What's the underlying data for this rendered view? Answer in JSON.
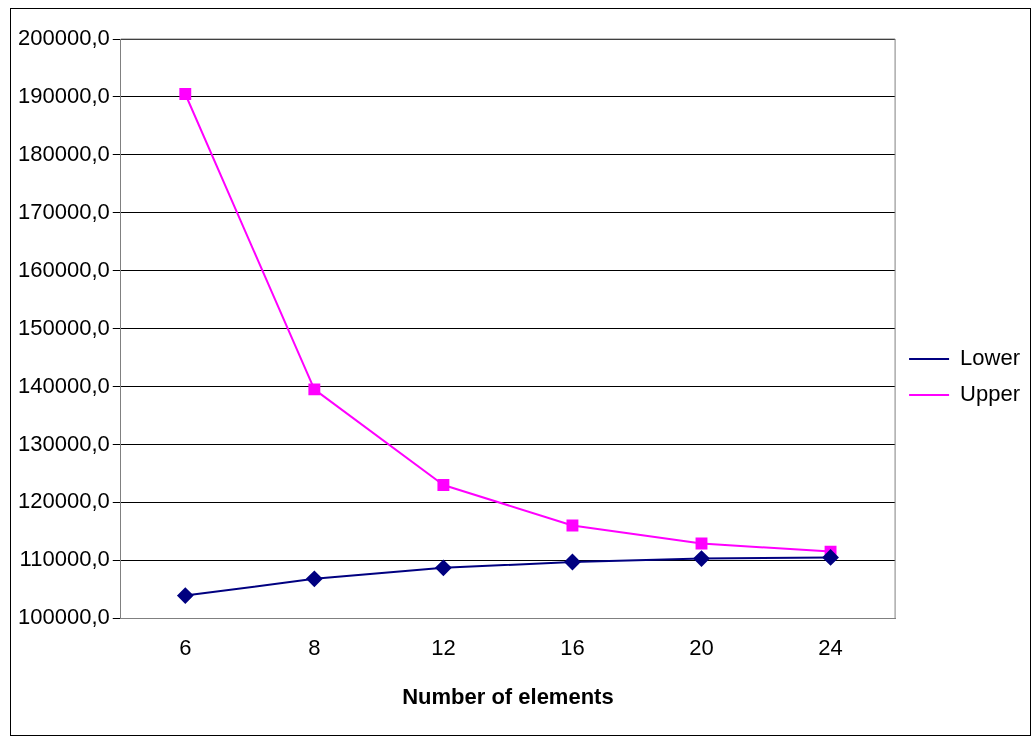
{
  "chart_data": {
    "type": "line",
    "xlabel": "Number of elements",
    "categories": [
      "6",
      "8",
      "12",
      "16",
      "20",
      "24"
    ],
    "series": [
      {
        "name": "Lower",
        "color": "#000080",
        "marker": "diamond",
        "values": [
          103900,
          106800,
          108700,
          109700,
          110300,
          110500
        ]
      },
      {
        "name": "Upper",
        "color": "#ff00ff",
        "marker": "square",
        "values": [
          190500,
          139500,
          123000,
          116000,
          112900,
          111500
        ]
      }
    ],
    "ylim": [
      100000,
      200000
    ],
    "yticks": [
      {
        "value": 100000,
        "label": "100000,0"
      },
      {
        "value": 110000,
        "label": "110000,0"
      },
      {
        "value": 120000,
        "label": "120000,0"
      },
      {
        "value": 130000,
        "label": "130000,0"
      },
      {
        "value": 140000,
        "label": "140000,0"
      },
      {
        "value": 150000,
        "label": "150000,0"
      },
      {
        "value": 160000,
        "label": "160000,0"
      },
      {
        "value": 170000,
        "label": "170000,0"
      },
      {
        "value": 180000,
        "label": "180000,0"
      },
      {
        "value": 190000,
        "label": "190000,0"
      },
      {
        "value": 200000,
        "label": "200000,0"
      }
    ],
    "grid": "y",
    "legend": "right",
    "line_style": "solid"
  }
}
